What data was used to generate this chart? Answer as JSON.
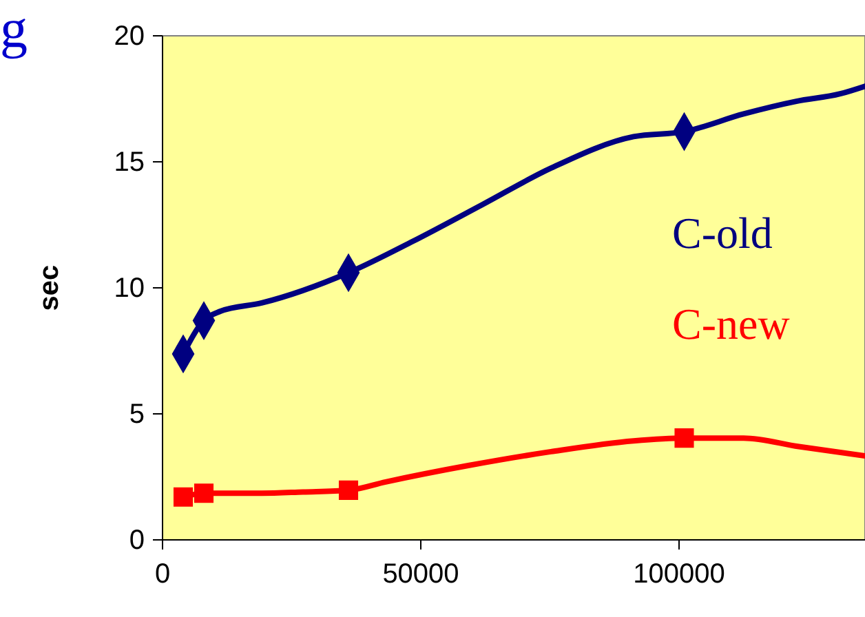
{
  "chart_data": {
    "type": "line",
    "ylabel": "sec",
    "annotations": [
      "g"
    ],
    "xlim": [
      0,
      136000
    ],
    "xticks": [
      0,
      50000,
      100000
    ],
    "ylim": [
      0,
      20
    ],
    "yticks": [
      0,
      5,
      10,
      15,
      20
    ],
    "legend": "right",
    "marker": "none",
    "line_style": "solid",
    "series": [
      {
        "name": "C-old",
        "color": "#000080",
        "x": [
          4000,
          8000,
          11200,
          19200,
          36000,
          48500,
          61900,
          75200,
          91200,
          101000,
          112500,
          122700,
          131200,
          136000
        ],
        "values": [
          7.38,
          8.7,
          9.07,
          9.4,
          10.6,
          11.85,
          13.3,
          14.75,
          16.0,
          16.2,
          16.9,
          17.4,
          17.7,
          18.0
        ]
      },
      {
        "color": "#000080",
        "type": "scatter",
        "marker": "diamond",
        "x": [
          4000,
          8000,
          36000,
          101000
        ],
        "values": [
          7.38,
          8.7,
          10.6,
          16.2
        ]
      },
      {
        "name": "C-new",
        "color": "#ff0000",
        "x": [
          4000,
          8000,
          19200,
          27200,
          36000,
          43200,
          59200,
          75200,
          91200,
          101000,
          112500,
          123200,
          136000
        ],
        "values": [
          1.7,
          1.85,
          1.85,
          1.9,
          1.97,
          2.3,
          2.95,
          3.5,
          3.93,
          4.04,
          4.04,
          3.7,
          3.33
        ]
      },
      {
        "color": "#ff0000",
        "type": "scatter",
        "marker": "square",
        "x": [
          4000,
          8000,
          36000,
          101000
        ],
        "values": [
          1.7,
          1.85,
          1.97,
          4.04
        ]
      }
    ]
  }
}
